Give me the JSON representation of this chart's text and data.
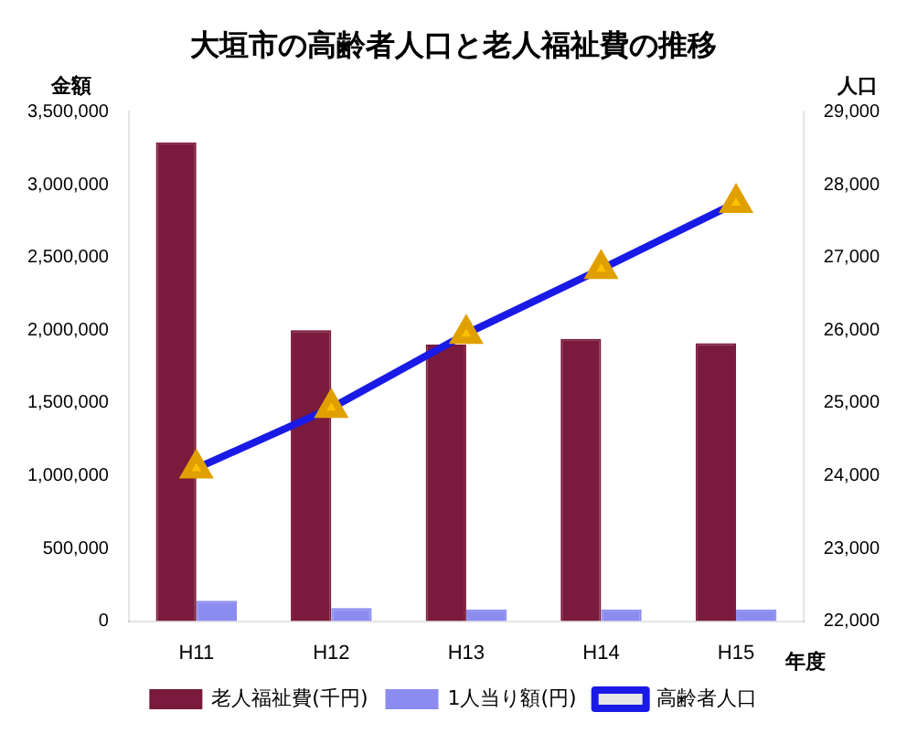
{
  "chart_data": {
    "type": "bar",
    "title": "大垣市の高齢者人口と老人福祉費の推移",
    "ylabel": "金額",
    "y2label": "人口",
    "xlabel": "年度",
    "categories": [
      "H11",
      "H12",
      "H13",
      "H14",
      "H15"
    ],
    "series": [
      {
        "name": "老人福祉費(千円)",
        "color": "#7a1a3c",
        "values": [
          3290000,
          2000000,
          1900000,
          1940000,
          1910000
        ]
      },
      {
        "name": "1人当り額(円)",
        "color": "#8c8cf0",
        "values": [
          140000,
          90000,
          80000,
          80000,
          80000
        ]
      },
      {
        "name": "高齢者人口",
        "type": "line",
        "axis": "y2",
        "color": "#1a1ae6",
        "values": [
          24100,
          24930,
          25950,
          26840,
          27750
        ]
      }
    ],
    "ylim": [
      0,
      3500000
    ],
    "yticks": [
      {
        "value": 0,
        "label": "0"
      },
      {
        "value": 500000,
        "label": "500,000"
      },
      {
        "value": 1000000,
        "label": "1,000,000"
      },
      {
        "value": 1500000,
        "label": "1,500,000"
      },
      {
        "value": 2000000,
        "label": "2,000,000"
      },
      {
        "value": 2500000,
        "label": "2,500,000"
      },
      {
        "value": 3000000,
        "label": "3,000,000"
      },
      {
        "value": 3500000,
        "label": "3,500,000"
      }
    ],
    "y2lim": [
      22000,
      29000
    ],
    "y2ticks": [
      {
        "value": 22000,
        "label": "22,000"
      },
      {
        "value": 23000,
        "label": "23,000"
      },
      {
        "value": 24000,
        "label": "24,000"
      },
      {
        "value": 25000,
        "label": "25,000"
      },
      {
        "value": 26000,
        "label": "26,000"
      },
      {
        "value": 27000,
        "label": "27,000"
      },
      {
        "value": 28000,
        "label": "28,000"
      },
      {
        "value": 29000,
        "label": "29,000"
      }
    ],
    "marker": "triangle",
    "grid": false,
    "legend": "bottom"
  }
}
